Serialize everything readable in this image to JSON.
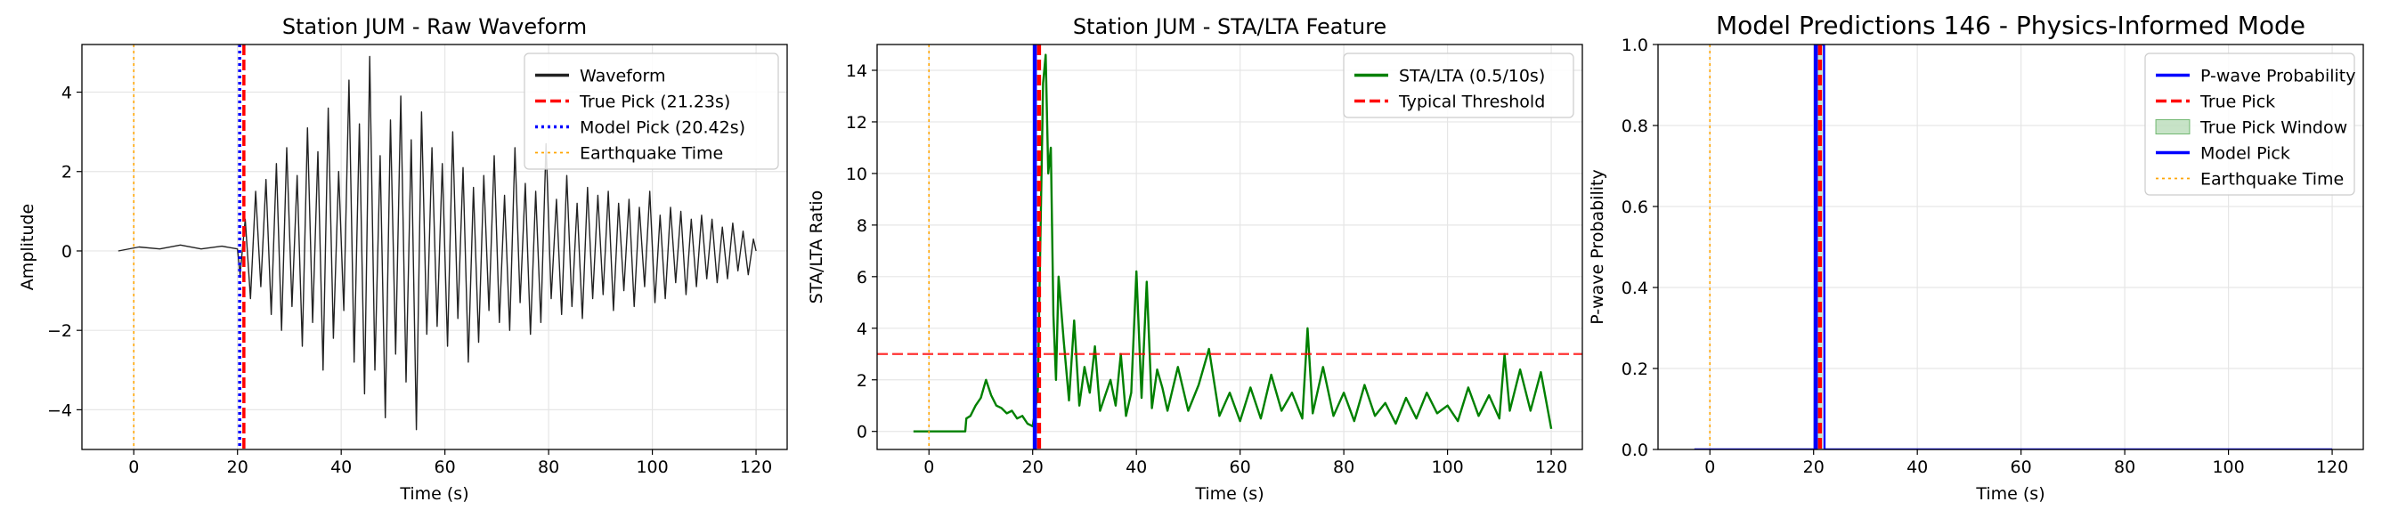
{
  "chart_data": [
    {
      "type": "line",
      "title": "Station JUM - Raw Waveform",
      "xlabel": "Time (s)",
      "ylabel": "Amplitude",
      "xlim": [
        -10,
        126
      ],
      "ylim": [
        -5,
        5.2
      ],
      "xticks": [
        0,
        20,
        40,
        60,
        80,
        100,
        120
      ],
      "xtick_labels": [
        "0",
        "20",
        "40",
        "60",
        "80",
        "100",
        "120"
      ],
      "yticks": [
        -4,
        -2,
        0,
        2,
        4
      ],
      "ytick_labels": [
        "−4",
        "−2",
        "0",
        "2",
        "4"
      ],
      "grid": true,
      "legend_position": "upper right",
      "series": [
        {
          "name": "Waveform",
          "color": "#222222",
          "style": "solid",
          "x": [
            -3,
            1,
            5,
            9,
            13,
            17,
            20,
            20.5,
            21.5,
            22.5,
            23.5,
            24.5,
            25.5,
            26.5,
            27.5,
            28.5,
            29.5,
            30.5,
            31.5,
            32.5,
            33.5,
            34.5,
            35.5,
            36.5,
            37.5,
            38.5,
            39.5,
            40.5,
            41.5,
            42.5,
            43.5,
            44.5,
            45.5,
            46.5,
            47.5,
            48.5,
            49.5,
            50.5,
            51.5,
            52.5,
            53.5,
            54.5,
            55.5,
            56.5,
            57.5,
            58.5,
            59.5,
            60.5,
            61.5,
            62.5,
            63.5,
            64.5,
            65.5,
            66.5,
            67.5,
            68.5,
            69.5,
            70.5,
            71.5,
            72.5,
            73.5,
            74.5,
            75.5,
            76.5,
            77.5,
            78.5,
            79.5,
            80.5,
            81.5,
            82.5,
            83.5,
            84.5,
            85.5,
            86.5,
            87.5,
            88.5,
            89.5,
            90.5,
            91.5,
            92.5,
            93.5,
            94.5,
            95.5,
            96.5,
            97.5,
            98.5,
            99.5,
            100.5,
            101.5,
            102.5,
            103.5,
            104.5,
            105.5,
            106.5,
            107.5,
            108.5,
            109.5,
            110.5,
            111.5,
            112.5,
            113.5,
            114.5,
            115.5,
            116.5,
            117.5,
            118.5,
            119.5,
            120
          ],
          "y": [
            0,
            0.1,
            0.05,
            0.15,
            0.05,
            0.12,
            0.05,
            -0.6,
            0.8,
            -1.2,
            1.5,
            -0.9,
            1.8,
            -1.6,
            2.2,
            -2.0,
            2.6,
            -1.4,
            1.9,
            -2.4,
            3.1,
            -1.8,
            2.5,
            -3.0,
            3.6,
            -2.2,
            2.0,
            -1.5,
            4.3,
            -2.8,
            3.2,
            -3.6,
            4.9,
            -3.0,
            2.4,
            -4.2,
            3.3,
            -2.6,
            3.9,
            -3.3,
            2.8,
            -4.5,
            3.5,
            -2.1,
            2.6,
            -1.9,
            2.2,
            -2.4,
            3.0,
            -1.7,
            2.1,
            -2.8,
            1.6,
            -2.3,
            1.9,
            -1.5,
            2.4,
            -1.8,
            1.4,
            -2.0,
            2.6,
            -1.3,
            1.7,
            -2.1,
            1.5,
            -1.8,
            2.7,
            -1.2,
            1.3,
            -1.6,
            1.9,
            -1.4,
            1.2,
            -1.7,
            1.6,
            -1.2,
            1.4,
            -1.1,
            1.5,
            -1.5,
            1.2,
            -1.0,
            1.3,
            -1.4,
            1.1,
            -0.9,
            1.5,
            -1.3,
            0.9,
            -1.2,
            1.1,
            -0.8,
            1.0,
            -1.1,
            0.8,
            -0.9,
            0.9,
            -0.7,
            0.8,
            -0.8,
            0.6,
            -0.7,
            0.7,
            -0.5,
            0.5,
            -0.6,
            0.3,
            0.0
          ]
        },
        {
          "name": "True Pick (21.23s)",
          "color": "#ff0000",
          "style": "dashed",
          "vline": 21.23
        },
        {
          "name": "Model Pick (20.42s)",
          "color": "#0000ff",
          "style": "dotted",
          "vline": 20.42
        },
        {
          "name": "Earthquake Time",
          "color": "#ffa500",
          "style": "dotted",
          "vline": 0
        }
      ]
    },
    {
      "type": "line",
      "title": "Station JUM - STA/LTA Feature",
      "xlabel": "Time (s)",
      "ylabel": "STA/LTA Ratio",
      "xlim": [
        -10,
        126
      ],
      "ylim": [
        -0.7,
        15
      ],
      "xticks": [
        0,
        20,
        40,
        60,
        80,
        100,
        120
      ],
      "xtick_labels": [
        "0",
        "20",
        "40",
        "60",
        "80",
        "100",
        "120"
      ],
      "yticks": [
        0,
        2,
        4,
        6,
        8,
        10,
        12,
        14
      ],
      "ytick_labels": [
        "0",
        "2",
        "4",
        "6",
        "8",
        "10",
        "12",
        "14"
      ],
      "grid": true,
      "legend_position": "upper right",
      "series": [
        {
          "name": "STA/LTA (0.5/10s)",
          "color": "#008000",
          "style": "solid",
          "x": [
            -3,
            7,
            7.2,
            8,
            9,
            10,
            11,
            12,
            13,
            14,
            15,
            16,
            17,
            18,
            19,
            20,
            20.5,
            21,
            21.5,
            22,
            22.5,
            23,
            23.5,
            24,
            24.5,
            25,
            26,
            27,
            28,
            29,
            30,
            31,
            32,
            33,
            34,
            35,
            36,
            37,
            38,
            39,
            40,
            41,
            42,
            43,
            44,
            45,
            46,
            48,
            50,
            52,
            54,
            56,
            58,
            60,
            62,
            64,
            66,
            68,
            70,
            72,
            73,
            74,
            76,
            78,
            80,
            82,
            84,
            86,
            88,
            90,
            92,
            94,
            96,
            98,
            100,
            102,
            104,
            106,
            108,
            110,
            111,
            112,
            114,
            116,
            118,
            120
          ],
          "y": [
            0,
            0,
            0.5,
            0.6,
            1.0,
            1.3,
            2.0,
            1.4,
            1.0,
            0.9,
            0.7,
            0.8,
            0.5,
            0.6,
            0.3,
            0.2,
            0.8,
            1.6,
            7.5,
            13.5,
            14.6,
            10.0,
            11.0,
            4.5,
            2.0,
            6.0,
            3.5,
            1.2,
            4.3,
            1.0,
            2.5,
            1.5,
            3.3,
            0.8,
            1.4,
            2.0,
            1.0,
            3.0,
            0.6,
            1.5,
            6.2,
            1.3,
            5.8,
            0.9,
            2.4,
            1.7,
            0.8,
            2.5,
            0.8,
            1.8,
            3.2,
            0.6,
            1.5,
            0.4,
            1.7,
            0.5,
            2.2,
            0.8,
            1.5,
            0.5,
            4.0,
            0.7,
            2.5,
            0.6,
            1.5,
            0.4,
            1.8,
            0.6,
            1.1,
            0.3,
            1.3,
            0.5,
            1.5,
            0.7,
            1.0,
            0.4,
            1.7,
            0.6,
            1.4,
            0.5,
            3.0,
            0.8,
            2.4,
            0.8,
            2.3,
            0.1
          ]
        },
        {
          "name": "Typical Threshold",
          "color": "#ff0000",
          "style": "dashed",
          "hline": 3.0
        },
        {
          "name": "True Pick",
          "color": "#ff0000",
          "style": "dashed",
          "vline": 21.23,
          "in_legend": false
        },
        {
          "name": "Model Pick",
          "color": "#0000ff",
          "style": "solid",
          "vline": 20.42,
          "in_legend": false
        },
        {
          "name": "Earthquake Time",
          "color": "#ffa500",
          "style": "dotted",
          "vline": 0,
          "in_legend": false
        }
      ]
    },
    {
      "type": "line",
      "title": "Model Predictions 146 - Physics-Informed Mode",
      "xlabel": "Time (s)",
      "ylabel": "P-wave Probability",
      "xlim": [
        -10,
        126
      ],
      "ylim": [
        0,
        1.0
      ],
      "xticks": [
        0,
        20,
        40,
        60,
        80,
        100,
        120
      ],
      "xtick_labels": [
        "0",
        "20",
        "40",
        "60",
        "80",
        "100",
        "120"
      ],
      "yticks": [
        0,
        0.2,
        0.4,
        0.6,
        0.8,
        1.0
      ],
      "ytick_labels": [
        "0.0",
        "0.2",
        "0.4",
        "0.6",
        "0.8",
        "1.0"
      ],
      "grid": true,
      "legend_position": "upper right",
      "series": [
        {
          "name": "P-wave Probability",
          "color": "#0000ff",
          "style": "solid",
          "x": [
            -3,
            20.2,
            20.3,
            22.0,
            22.1,
            120
          ],
          "y": [
            0,
            0,
            1.0,
            1.0,
            0,
            0
          ]
        },
        {
          "name": "True Pick",
          "color": "#ff0000",
          "style": "dashed",
          "vline": 21.23
        },
        {
          "name": "True Pick Window",
          "color": "#008000",
          "style": "span",
          "span": [
            20.73,
            21.73
          ]
        },
        {
          "name": "Model Pick",
          "color": "#0000ff",
          "style": "solid",
          "vline": 20.42
        },
        {
          "name": "Earthquake Time",
          "color": "#ffa500",
          "style": "dotted",
          "vline": 0
        }
      ]
    }
  ]
}
